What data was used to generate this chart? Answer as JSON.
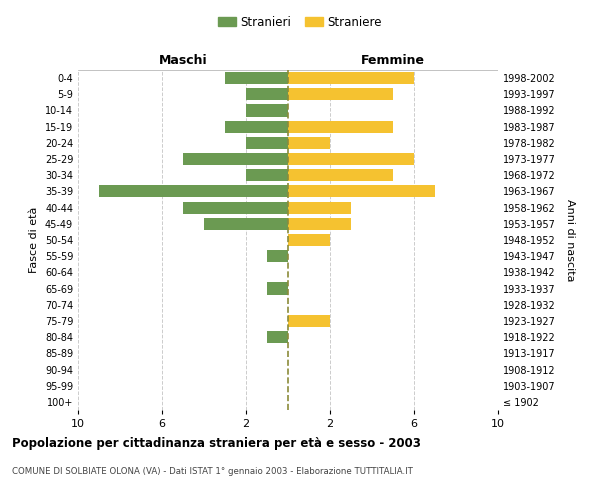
{
  "age_groups": [
    "100+",
    "95-99",
    "90-94",
    "85-89",
    "80-84",
    "75-79",
    "70-74",
    "65-69",
    "60-64",
    "55-59",
    "50-54",
    "45-49",
    "40-44",
    "35-39",
    "30-34",
    "25-29",
    "20-24",
    "15-19",
    "10-14",
    "5-9",
    "0-4"
  ],
  "birth_years": [
    "≤ 1902",
    "1903-1907",
    "1908-1912",
    "1913-1917",
    "1918-1922",
    "1923-1927",
    "1928-1932",
    "1933-1937",
    "1938-1942",
    "1943-1947",
    "1948-1952",
    "1953-1957",
    "1958-1962",
    "1963-1967",
    "1968-1972",
    "1973-1977",
    "1978-1982",
    "1983-1987",
    "1988-1992",
    "1993-1997",
    "1998-2002"
  ],
  "males": [
    0,
    0,
    0,
    0,
    1,
    0,
    0,
    1,
    0,
    1,
    0,
    4,
    5,
    9,
    2,
    5,
    2,
    3,
    2,
    2,
    3
  ],
  "females": [
    0,
    0,
    0,
    0,
    0,
    2,
    0,
    0,
    0,
    0,
    2,
    3,
    3,
    7,
    5,
    6,
    2,
    5,
    0,
    5,
    6
  ],
  "male_color": "#6b9a52",
  "female_color": "#f5c230",
  "background_color": "#ffffff",
  "grid_color": "#cccccc",
  "center_line_color": "#8b8b3a",
  "title": "Popolazione per cittadinanza straniera per età e sesso - 2003",
  "subtitle": "COMUNE DI SOLBIATE OLONA (VA) - Dati ISTAT 1° gennaio 2003 - Elaborazione TUTTITALIA.IT",
  "xlabel_left": "Maschi",
  "xlabel_right": "Femmine",
  "ylabel_left": "Fasce di età",
  "ylabel_right": "Anni di nascita",
  "legend_male": "Stranieri",
  "legend_female": "Straniere"
}
